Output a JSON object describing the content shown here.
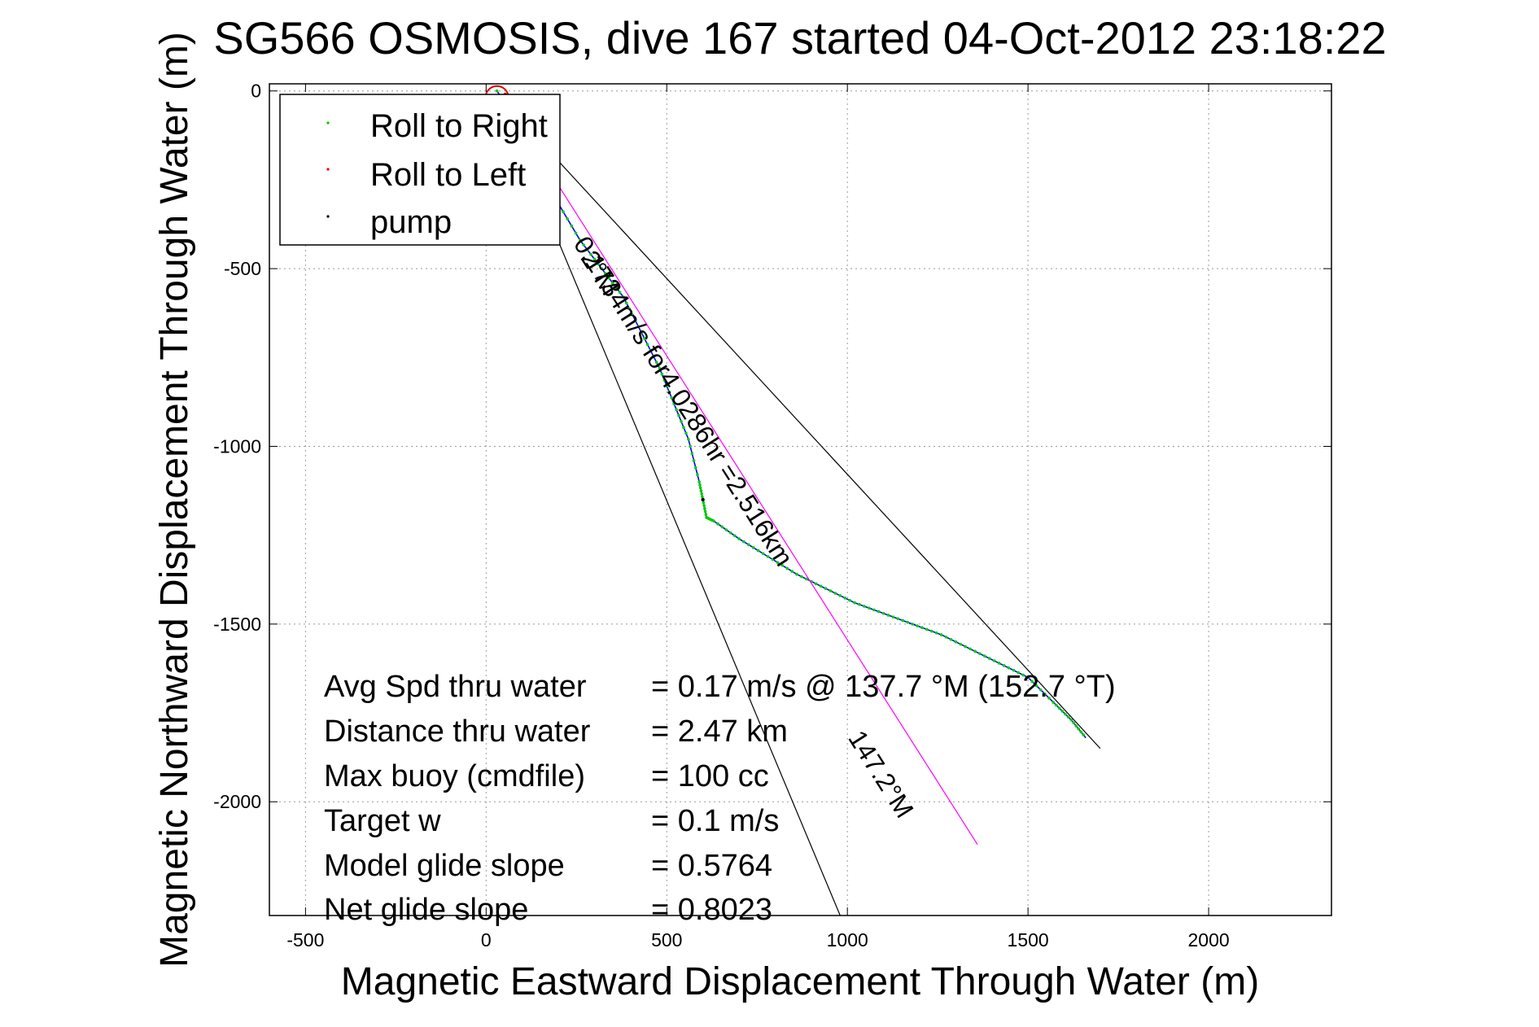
{
  "chart_data": {
    "type": "line",
    "title": "SG566 OSMOSIS, dive 167 started 04-Oct-2012 23:18:22",
    "xlabel": "Magnetic Eastward Displacement Through Water (m)",
    "ylabel": "Magnetic Northward Displacement Through Water (m)",
    "xlim": [
      -600,
      2340
    ],
    "ylim": [
      -2320,
      20
    ],
    "xticks": [
      -500,
      0,
      500,
      1000,
      1500,
      2000
    ],
    "yticks": [
      0,
      -500,
      -1000,
      -1500,
      -2000
    ],
    "xtick_labels": [
      "-500",
      "0",
      "500",
      "1000",
      "1500",
      "2000"
    ],
    "ytick_labels": [
      "0",
      "-500",
      "-1000",
      "-1500",
      "-2000"
    ],
    "grid": true,
    "legend_position": "top-left",
    "legend": [
      {
        "label": "Roll to Right",
        "color": "#00cc00"
      },
      {
        "label": "Roll to Left",
        "color": "#dd0000"
      },
      {
        "label": "pump",
        "color": "#000000"
      }
    ],
    "series": [
      {
        "kind": "track",
        "color": "#0000ff",
        "x": [
          30,
          120,
          190,
          260,
          320,
          380,
          430,
          480,
          520,
          560,
          590,
          600,
          610,
          630,
          700,
          780,
          860,
          940,
          1020,
          1100,
          1180,
          1260,
          1340,
          1420,
          1500,
          1570,
          1620,
          1660
        ],
        "y": [
          0,
          -140,
          -300,
          -420,
          -500,
          -580,
          -680,
          -780,
          -880,
          -980,
          -1100,
          -1150,
          -1200,
          -1210,
          -1260,
          -1310,
          -1360,
          -1400,
          -1440,
          -1470,
          -1500,
          -1530,
          -1570,
          -1610,
          -1650,
          -1720,
          -1770,
          -1820
        ]
      },
      {
        "kind": "bearing_line",
        "color": "#ff00ff",
        "x": [
          40,
          1360
        ],
        "y": [
          -10,
          -2120
        ]
      },
      {
        "kind": "envelope",
        "color": "#000000",
        "x": [
          30,
          1700
        ],
        "y": [
          -10,
          -1850
        ]
      },
      {
        "kind": "envelope",
        "color": "#000000",
        "x": [
          30,
          980
        ],
        "y": [
          -10,
          -2320
        ]
      }
    ],
    "annotations": [
      {
        "text": "0.1734m/s for4.0286hr =2.516km",
        "x": 240,
        "y": -430
      },
      {
        "text": "147.2°M",
        "x": 1000,
        "y": -1820
      },
      {
        "text": "2°M",
        "x": 260,
        "y": -470
      }
    ],
    "stats": [
      {
        "label": "Avg Spd thru water",
        "value": "=  0.17 m/s @ 137.7 °M (152.7 °T)"
      },
      {
        "label": "Distance thru water",
        "value": "=  2.47 km"
      },
      {
        "label": "Max buoy (cmdfile)",
        "value": "= 100 cc"
      },
      {
        "label": "Target w",
        "value": "= 0.1 m/s"
      },
      {
        "label": "Model glide slope",
        "value": "= 0.5764"
      },
      {
        "label": "Net glide slope",
        "value": "= 0.8023"
      }
    ]
  }
}
